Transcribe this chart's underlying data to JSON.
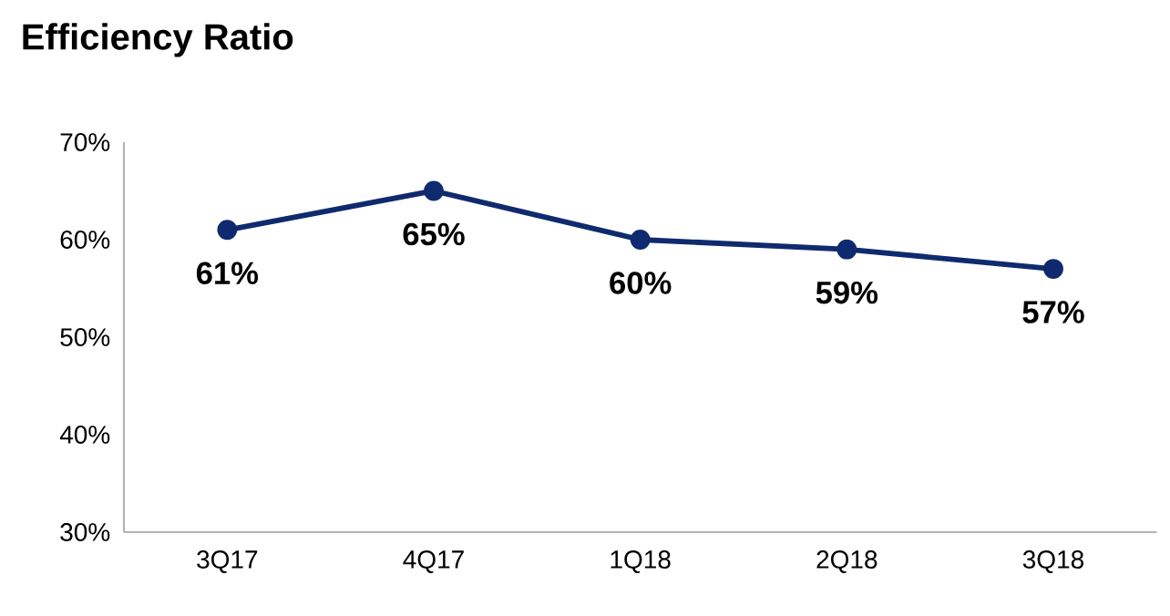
{
  "chart_data": {
    "type": "line",
    "title": "Efficiency Ratio",
    "categories": [
      "3Q17",
      "4Q17",
      "1Q18",
      "2Q18",
      "3Q18"
    ],
    "series": [
      {
        "color": "#0f2a6e",
        "values": [
          61,
          65,
          60,
          59,
          57
        ],
        "value_labels": [
          "61%",
          "65%",
          "60%",
          "59%",
          "57%"
        ]
      }
    ],
    "ylim": [
      30,
      70
    ],
    "yticks": [
      {
        "value": 30,
        "label": "30%"
      },
      {
        "value": 40,
        "label": "40%"
      },
      {
        "value": 50,
        "label": "50%"
      },
      {
        "value": 60,
        "label": "60%"
      },
      {
        "value": 70,
        "label": "70%"
      }
    ],
    "marker": "circle",
    "line_style": "solid"
  }
}
